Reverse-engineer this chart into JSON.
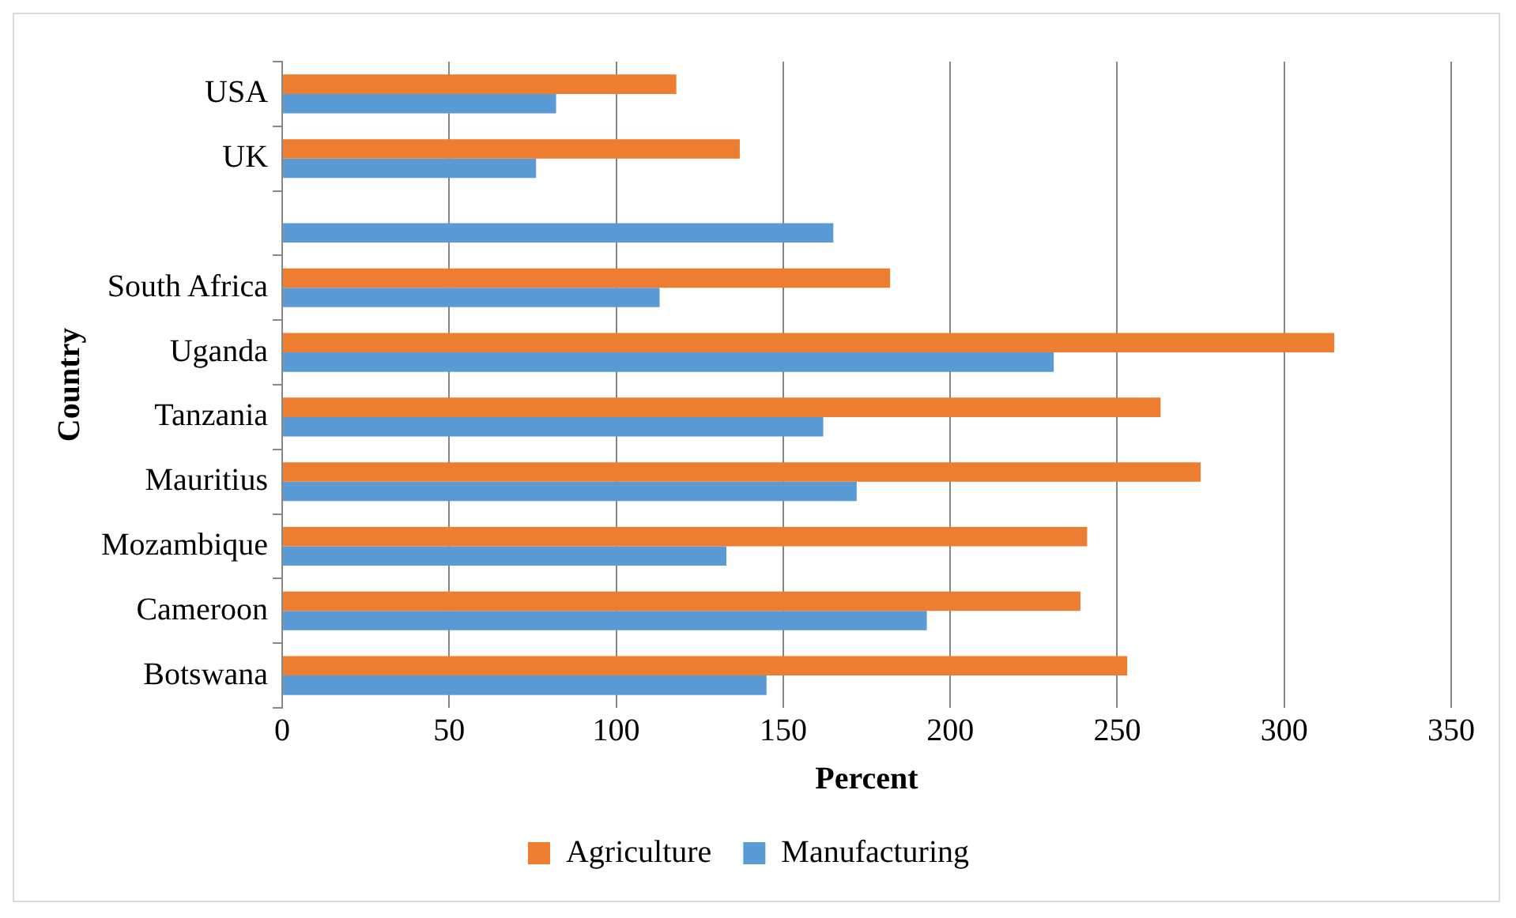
{
  "chart_data": {
    "type": "bar",
    "orientation": "horizontal",
    "xlabel": "Percent",
    "ylabel": "Country",
    "categories": [
      "USA",
      "UK",
      null,
      "South Africa",
      "Uganda",
      "Tanzania",
      "Mauritius",
      "Mozambique",
      "Cameroon",
      "Botswana"
    ],
    "series": [
      {
        "name": "Agriculture",
        "color": "#ed7d31",
        "values": [
          118,
          137,
          null,
          182,
          315,
          263,
          275,
          241,
          239,
          253
        ]
      },
      {
        "name": "Manufacturing",
        "color": "#5b9bd5",
        "values": [
          82,
          76,
          165,
          113,
          231,
          162,
          172,
          133,
          193,
          145
        ]
      }
    ],
    "xlim": [
      0,
      350
    ],
    "xticks": [
      0,
      50,
      100,
      150,
      200,
      250,
      300,
      350
    ],
    "grid": "x",
    "legend": "bottom"
  }
}
